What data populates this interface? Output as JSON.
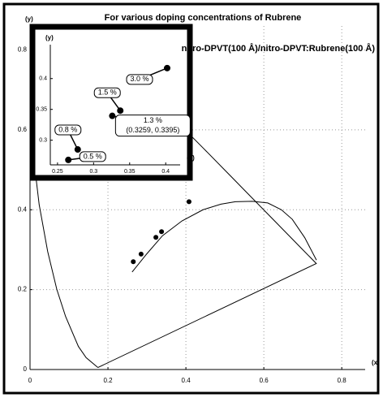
{
  "chart_data": [
    {
      "type": "scatter",
      "title": "For various doping concentrations of Rubrene",
      "x_label": "(x)",
      "y_label": "(y)",
      "xlim": [
        0,
        0.86
      ],
      "ylim": [
        0,
        0.86
      ],
      "xticks": [
        0,
        0.2,
        0.4,
        0.6,
        0.8
      ],
      "yticks": [
        0,
        0.2,
        0.4,
        0.6,
        0.8
      ],
      "grid": true,
      "color": "#000000",
      "x": [
        0.265,
        0.285,
        0.323,
        0.3375,
        0.408
      ],
      "y": [
        0.27,
        0.289,
        0.331,
        0.345,
        0.42
      ],
      "locus": {
        "x": [
          0.1741,
          0.144,
          0.1241,
          0.0913,
          0.0687,
          0.0454,
          0.0235,
          0.0082,
          0.0039,
          0.0139,
          0.0389,
          0.0743,
          0.1142,
          0.1547,
          0.2296,
          0.3016,
          0.3731,
          0.4441,
          0.5125,
          0.5752,
          0.627,
          0.6658,
          0.6915,
          0.7347,
          0.1741
        ],
        "y": [
          0.005,
          0.0297,
          0.0578,
          0.1327,
          0.2007,
          0.295,
          0.4127,
          0.5384,
          0.6548,
          0.7502,
          0.812,
          0.8338,
          0.8262,
          0.8059,
          0.7543,
          0.6923,
          0.6245,
          0.5547,
          0.4866,
          0.4242,
          0.3725,
          0.334,
          0.3083,
          0.2653,
          0.005
        ]
      },
      "arc": {
        "x": [
          0.262,
          0.3,
          0.34,
          0.39,
          0.444,
          0.49,
          0.527,
          0.57,
          0.61,
          0.645,
          0.673,
          0.705,
          0.735
        ],
        "y": [
          0.244,
          0.29,
          0.335,
          0.372,
          0.4,
          0.414,
          0.42,
          0.421,
          0.417,
          0.4,
          0.376,
          0.33,
          0.274
        ]
      }
    },
    {
      "type": "scatter",
      "title": "nitro-DPVT(100 Å)/nitro-DPVT:Rubrene(100 Å)",
      "x_label": "(x)",
      "y_label": "(y)",
      "xlim": [
        0.24,
        0.42
      ],
      "ylim": [
        0.26,
        0.455
      ],
      "xticks": [
        0.25,
        0.3,
        0.35,
        0.4
      ],
      "yticks": [
        0.3,
        0.35,
        0.4
      ],
      "color": "#000000",
      "x": [
        0.265,
        0.278,
        0.3259,
        0.337,
        0.402
      ],
      "y": [
        0.268,
        0.285,
        0.3395,
        0.348,
        0.417
      ],
      "point_labels": [
        "0.5 %",
        "0.8 %",
        "1.3 %",
        "1.5 %",
        "3.0 %"
      ],
      "value_labels": [
        null,
        null,
        "(0.3259, 0.3395)",
        null,
        null
      ]
    }
  ]
}
